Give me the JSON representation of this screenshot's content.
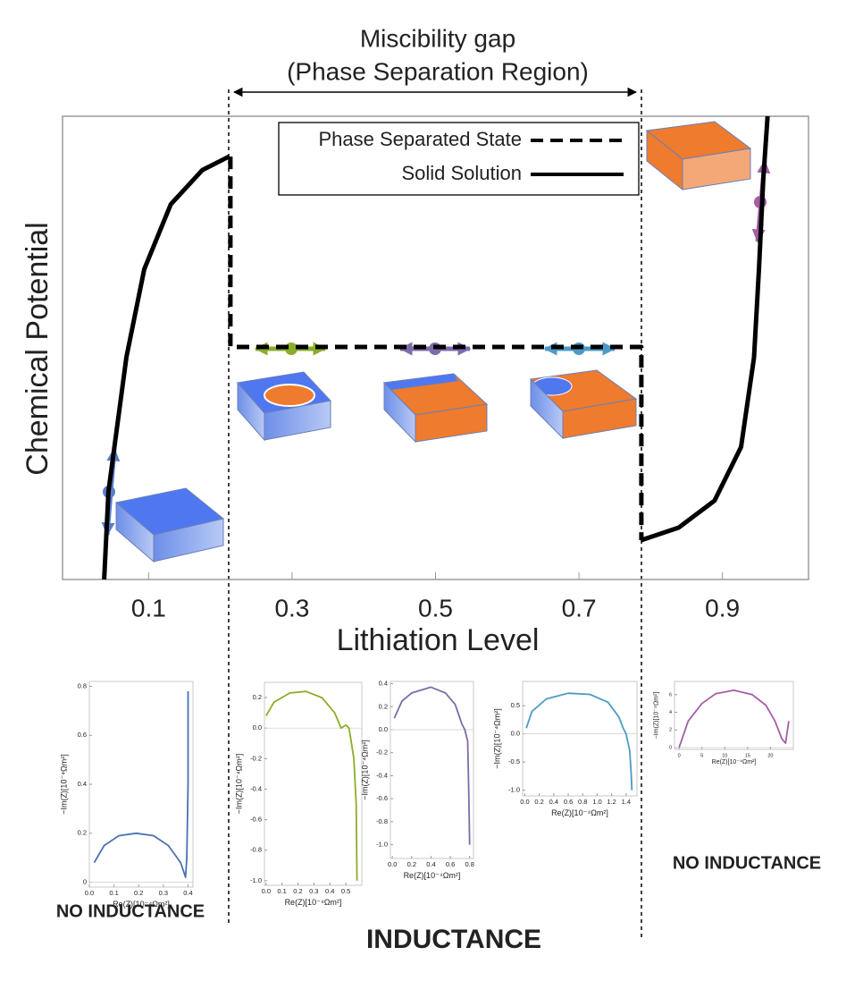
{
  "chart_data": [
    {
      "type": "line",
      "title": "Miscibility gap",
      "subtitle": "(Phase Separation Region)",
      "xlabel": "Lithiation Level",
      "ylabel": "Chemical Potential",
      "xlim": [
        -0.02,
        1.02
      ],
      "ylim": [
        0,
        1
      ],
      "xticks": [
        0.1,
        0.3,
        0.5,
        0.7,
        0.9
      ],
      "series": [
        {
          "name": "Phase Separated State",
          "style": "dashed",
          "color": "#000000",
          "x": [
            0.214,
            0.214,
            0.787,
            0.787
          ],
          "values": [
            0.913,
            0.502,
            0.502,
            0.085
          ]
        },
        {
          "name": "Solid Solution",
          "style": "solid",
          "color": "#000000",
          "x": [
            0.038,
            0.044,
            0.069,
            0.094,
            0.131,
            0.175,
            0.212,
            null,
            0.787,
            0.839,
            0.889,
            0.926,
            0.944,
            0.951,
            0.957,
            0.963
          ],
          "values": [
            0,
            0.19,
            0.48,
            0.67,
            0.81,
            0.884,
            0.913,
            null,
            0.085,
            0.112,
            0.17,
            0.286,
            0.479,
            0.672,
            0.865,
            1
          ]
        }
      ]
    },
    {
      "type": "line",
      "xlabel": "Re(Z)[10⁻⁴Ωm²]",
      "ylabel": "−Im(Z)[10⁻⁴Ωm²]",
      "xlim": [
        0,
        0.42
      ],
      "ylim": [
        -0.02,
        0.82
      ],
      "xticks": [
        {
          "value": 0,
          "label": "0.0"
        },
        0.1,
        0.2,
        0.3,
        0.4
      ],
      "yticks": [
        0,
        0.2,
        0.4,
        0.6,
        0.8
      ],
      "series": [
        {
          "color": "#4a72b0",
          "x": [
            0.02,
            0.06,
            0.12,
            0.19,
            0.26,
            0.32,
            0.37,
            0.39,
            0.395,
            0.4,
            0.4
          ],
          "values": [
            0.08,
            0.15,
            0.19,
            0.2,
            0.19,
            0.15,
            0.08,
            0.02,
            0.1,
            0.4,
            0.78
          ]
        }
      ],
      "annotation": "NO INDUCTANCE"
    },
    {
      "type": "line",
      "xlabel": "Re(Z)[10⁻⁴Ωm²]",
      "ylabel": "−Im(Z)[10⁻⁴Ωm²]",
      "xlim": [
        -0.01,
        0.6
      ],
      "ylim": [
        -1.03,
        0.3
      ],
      "xticks": [
        {
          "value": 0,
          "label": "0.0"
        },
        0.1,
        0.2,
        0.3,
        0.4,
        0.5
      ],
      "yticks": [
        0.2,
        {
          "value": 0,
          "label": "0.0"
        },
        -0.2,
        -0.4,
        -0.6,
        -0.8,
        {
          "value": -1,
          "label": "-1.0"
        }
      ],
      "series": [
        {
          "color": "#8aad2b",
          "x": [
            0,
            0.05,
            0.15,
            0.25,
            0.35,
            0.43,
            0.47,
            0.5,
            0.52,
            0.55,
            0.565,
            0.57
          ],
          "values": [
            0.08,
            0.17,
            0.23,
            0.24,
            0.2,
            0.1,
            0,
            0.02,
            0,
            -0.2,
            -0.5,
            -1.0
          ]
        }
      ],
      "annotation": "INDUCTANCE"
    },
    {
      "type": "line",
      "xlabel": "Re(Z)[10⁻⁴Ωm²]",
      "ylabel": "−Im(Z)[10⁻⁴Ωm²]",
      "xlim": [
        -0.02,
        0.84
      ],
      "ylim": [
        -1.12,
        0.42
      ],
      "xticks": [
        {
          "value": 0,
          "label": "0.0"
        },
        0.2,
        0.4,
        0.6,
        0.8
      ],
      "yticks": [
        0.4,
        0.2,
        {
          "value": 0,
          "label": "0.0"
        },
        -0.2,
        -0.4,
        -0.6,
        -0.8,
        {
          "value": -1,
          "label": "-1.0"
        }
      ],
      "series": [
        {
          "color": "#7e6bab",
          "x": [
            0.02,
            0.1,
            0.2,
            0.4,
            0.55,
            0.65,
            0.72,
            0.75,
            0.78,
            0.79,
            0.8
          ],
          "values": [
            0.1,
            0.25,
            0.32,
            0.37,
            0.32,
            0.22,
            0.05,
            0,
            -0.1,
            -0.5,
            -1.0
          ]
        }
      ]
    },
    {
      "type": "line",
      "xlabel": "Re(Z)[10⁻⁴Ωm²]",
      "ylabel": "−Im(Z)[10⁻⁴Ωm²]",
      "xlim": [
        -0.03,
        1.55
      ],
      "ylim": [
        -1.1,
        0.93
      ],
      "xticks": [
        {
          "value": 0,
          "label": "0.0"
        },
        0.2,
        0.4,
        0.6,
        0.8,
        {
          "value": 1,
          "label": "1.0"
        },
        1.2,
        1.4
      ],
      "yticks": [
        0.5,
        {
          "value": 0,
          "label": "0.0"
        },
        -0.5,
        {
          "value": -1,
          "label": "-1.0"
        }
      ],
      "series": [
        {
          "color": "#4e9ac7",
          "x": [
            0.02,
            0.1,
            0.3,
            0.6,
            0.9,
            1.15,
            1.3,
            1.36,
            1.4,
            1.45,
            1.47,
            1.48
          ],
          "values": [
            0.1,
            0.4,
            0.62,
            0.72,
            0.7,
            0.56,
            0.3,
            0.1,
            0,
            -0.3,
            -0.7,
            -1.0
          ]
        }
      ]
    },
    {
      "type": "line",
      "xlabel": "Re(Z)[10⁻⁴Ωm²]",
      "ylabel": "−Im(Z)[10⁻⁴Ωm²]",
      "xlim": [
        -1,
        25
      ],
      "ylim": [
        -0.2,
        7.5
      ],
      "xticks": [
        0,
        5,
        10,
        15,
        20
      ],
      "yticks": [
        0,
        2,
        4,
        6
      ],
      "series": [
        {
          "color": "#a45ea5",
          "x": [
            0,
            2,
            5,
            8,
            12,
            16,
            19,
            21,
            22.5,
            23.3,
            24
          ],
          "values": [
            0,
            3,
            5,
            6.1,
            6.5,
            6,
            4.8,
            3,
            1,
            0.5,
            3
          ]
        }
      ],
      "annotation": "NO INDUCTANCE"
    }
  ]
}
